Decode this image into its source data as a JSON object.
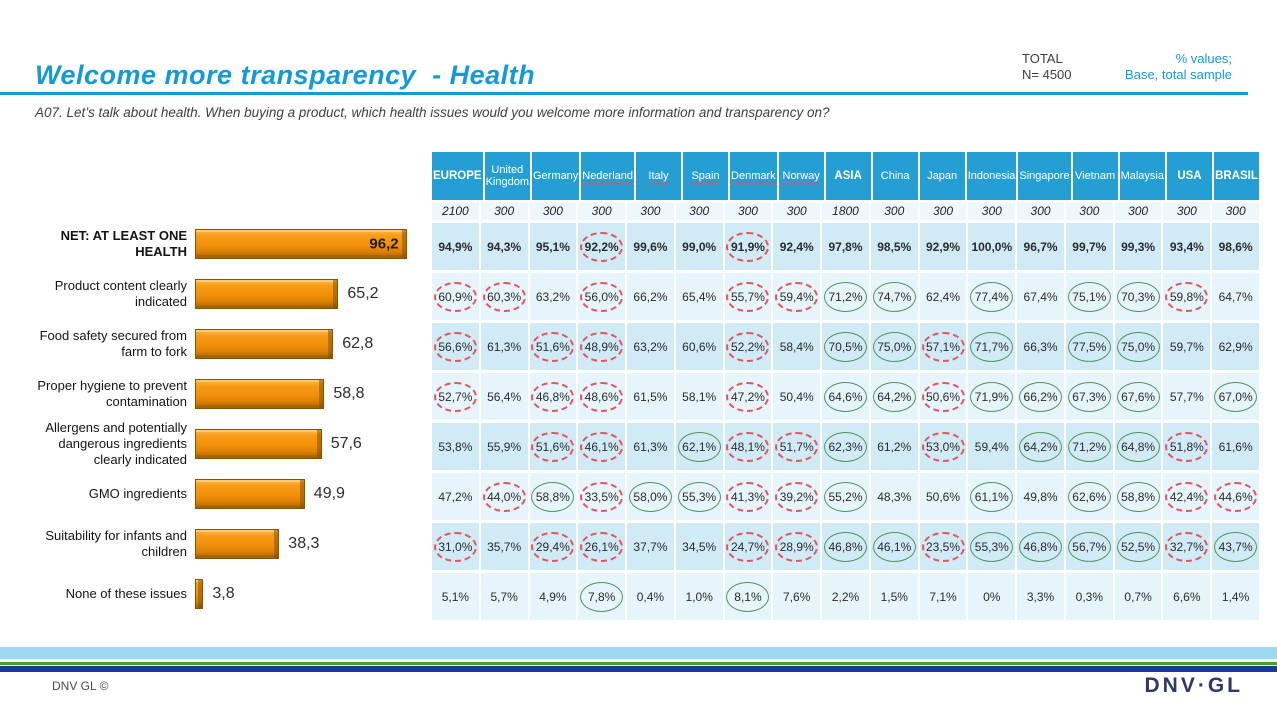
{
  "header": {
    "title": "Welcome more transparency  - Health",
    "question": "A07. Let’s talk about health. When buying a product, which health issues would you welcome more information and transparency on?",
    "total_label": "TOTAL",
    "total_n": "N= 4500",
    "note1": "% values;",
    "note2": "Base, total sample"
  },
  "colors": {
    "accent_cyan": "#149AD6",
    "bar_orange": "#F1900A",
    "table_header_blue": "#259FD3",
    "row_dark": "#D0EAF6",
    "row_light": "#E6F4FB",
    "circle_red": "#E4555C",
    "circle_green": "#55965B",
    "stripe_sky": "#9ED8F0",
    "stripe_green": "#3FA332",
    "stripe_navy": "#163A9C"
  },
  "chart_data": {
    "type": "bar",
    "orientation": "horizontal",
    "title": "Welcome more transparency - Health",
    "categories": [
      "NET: AT LEAST ONE HEALTH",
      "Product content clearly indicated",
      "Food safety secured from farm to fork",
      "Proper hygiene to prevent contamination",
      "Allergens and potentially dangerous ingredients clearly indicated",
      "GMO ingredients",
      "Suitability for infants and children",
      "None of these issues"
    ],
    "values": [
      96.2,
      65.2,
      62.8,
      58.8,
      57.6,
      49.9,
      38.3,
      3.8
    ],
    "value_labels": [
      "96,2",
      "65,2",
      "62,8",
      "58,8",
      "57,6",
      "49,9",
      "38,3",
      "3,8"
    ],
    "xlim": [
      0,
      100
    ],
    "bar_color": "#F1900A"
  },
  "table": {
    "columns": [
      {
        "label": "EUROPE",
        "n": "2100",
        "group": true,
        "misspell": false
      },
      {
        "label": "United Kingdom",
        "n": "300",
        "group": false,
        "misspell": false
      },
      {
        "label": "Germany",
        "n": "300",
        "group": false,
        "misspell": false
      },
      {
        "label": "Nederland",
        "n": "300",
        "group": false,
        "misspell": true
      },
      {
        "label": "Italy",
        "n": "300",
        "group": false,
        "misspell": true
      },
      {
        "label": "Spain",
        "n": "300",
        "group": false,
        "misspell": true
      },
      {
        "label": "Denmark",
        "n": "300",
        "group": false,
        "misspell": true
      },
      {
        "label": "Norway",
        "n": "300",
        "group": false,
        "misspell": true
      },
      {
        "label": "ASIA",
        "n": "1800",
        "group": true,
        "misspell": false
      },
      {
        "label": "China",
        "n": "300",
        "group": false,
        "misspell": false
      },
      {
        "label": "Japan",
        "n": "300",
        "group": false,
        "misspell": false
      },
      {
        "label": "Indonesia",
        "n": "300",
        "group": false,
        "misspell": false
      },
      {
        "label": "Singapore",
        "n": "300",
        "group": false,
        "misspell": false
      },
      {
        "label": "Vietnam",
        "n": "300",
        "group": false,
        "misspell": false
      },
      {
        "label": "Malaysia",
        "n": "300",
        "group": false,
        "misspell": false
      },
      {
        "label": "USA",
        "n": "300",
        "group": true,
        "misspell": false
      },
      {
        "label": "BRASIL",
        "n": "300",
        "group": true,
        "misspell": false
      }
    ],
    "rows": [
      {
        "label": "NET: AT LEAST ONE HEALTH",
        "bold": true,
        "value_inside": true,
        "pct": 96.2,
        "value_label": "96,2",
        "values": [
          "94,9%",
          "94,3%",
          "95,1%",
          "92,2%",
          "99,6%",
          "99,0%",
          "91,9%",
          "92,4%",
          "97,8%",
          "98,5%",
          "92,9%",
          "100,0%",
          "96,7%",
          "99,7%",
          "99,3%",
          "93,4%",
          "98,6%"
        ],
        "marks": [
          "",
          "",
          "",
          "r",
          "",
          "",
          "r",
          "",
          "",
          "",
          "",
          "",
          "",
          "",
          "",
          "",
          ""
        ]
      },
      {
        "label": "Product content clearly indicated",
        "bold": false,
        "value_inside": false,
        "pct": 65.2,
        "value_label": "65,2",
        "values": [
          "60,9%",
          "60,3%",
          "63,2%",
          "56,0%",
          "66,2%",
          "65,4%",
          "55,7%",
          "59,4%",
          "71,2%",
          "74,7%",
          "62,4%",
          "77,4%",
          "67,4%",
          "75,1%",
          "70,3%",
          "59,8%",
          "64,7%"
        ],
        "marks": [
          "r",
          "r",
          "",
          "r",
          "",
          "",
          "r",
          "r",
          "g",
          "g",
          "",
          "g",
          "",
          "g",
          "g",
          "r",
          ""
        ]
      },
      {
        "label": "Food safety secured from farm to fork",
        "bold": false,
        "value_inside": false,
        "pct": 62.8,
        "value_label": "62,8",
        "values": [
          "56,6%",
          "61,3%",
          "51,6%",
          "48,9%",
          "63,2%",
          "60,6%",
          "52,2%",
          "58,4%",
          "70,5%",
          "75,0%",
          "57,1%",
          "71,7%",
          "66,3%",
          "77,5%",
          "75,0%",
          "59,7%",
          "62,9%"
        ],
        "marks": [
          "r",
          "",
          "r",
          "r",
          "",
          "",
          "r",
          "",
          "g",
          "g",
          "r",
          "g",
          "",
          "g",
          "g",
          "",
          ""
        ]
      },
      {
        "label": "Proper hygiene to prevent contamination",
        "bold": false,
        "value_inside": false,
        "pct": 58.8,
        "value_label": "58,8",
        "values": [
          "52,7%",
          "56,4%",
          "46,8%",
          "48,6%",
          "61,5%",
          "58,1%",
          "47,2%",
          "50,4%",
          "64,6%",
          "64,2%",
          "50,6%",
          "71,9%",
          "66,2%",
          "67,3%",
          "67,6%",
          "57,7%",
          "67,0%"
        ],
        "marks": [
          "r",
          "",
          "r",
          "r",
          "",
          "",
          "r",
          "",
          "g",
          "g",
          "r",
          "g",
          "g",
          "g",
          "g",
          "",
          "g"
        ]
      },
      {
        "label": "Allergens and potentially dangerous ingredients clearly indicated",
        "bold": false,
        "value_inside": false,
        "pct": 57.6,
        "value_label": "57,6",
        "values": [
          "53,8%",
          "55,9%",
          "51,6%",
          "46,1%",
          "61,3%",
          "62,1%",
          "48,1%",
          "51,7%",
          "62,3%",
          "61,2%",
          "53,0%",
          "59,4%",
          "64,2%",
          "71,2%",
          "64,8%",
          "51,8%",
          "61,6%"
        ],
        "marks": [
          "",
          "",
          "r",
          "r",
          "",
          "g",
          "r",
          "r",
          "g",
          "",
          "r",
          "",
          "g",
          "g",
          "g",
          "r",
          ""
        ]
      },
      {
        "label": "GMO ingredients",
        "bold": false,
        "value_inside": false,
        "pct": 49.9,
        "value_label": "49,9",
        "values": [
          "47,2%",
          "44,0%",
          "58,8%",
          "33,5%",
          "58,0%",
          "55,3%",
          "41,3%",
          "39,2%",
          "55,2%",
          "48,3%",
          "50,6%",
          "61,1%",
          "49,8%",
          "62,6%",
          "58,8%",
          "42,4%",
          "44,6%"
        ],
        "marks": [
          "",
          "r",
          "g",
          "r",
          "g",
          "g",
          "r",
          "r",
          "g",
          "",
          "",
          "g",
          "",
          "g",
          "g",
          "r",
          "r"
        ]
      },
      {
        "label": "Suitability for infants and children",
        "bold": false,
        "value_inside": false,
        "pct": 38.3,
        "value_label": "38,3",
        "values": [
          "31,0%",
          "35,7%",
          "29,4%",
          "26,1%",
          "37,7%",
          "34,5%",
          "24,7%",
          "28,9%",
          "46,8%",
          "46,1%",
          "23,5%",
          "55,3%",
          "46,8%",
          "56,7%",
          "52,5%",
          "32,7%",
          "43,7%"
        ],
        "marks": [
          "r",
          "",
          "r",
          "r",
          "",
          "",
          "r",
          "r",
          "g",
          "g",
          "r",
          "g",
          "g",
          "g",
          "g",
          "r",
          "g"
        ]
      },
      {
        "label": "None of these issues",
        "bold": false,
        "value_inside": false,
        "pct": 3.8,
        "value_label": "3,8",
        "values": [
          "5,1%",
          "5,7%",
          "4,9%",
          "7,8%",
          "0,4%",
          "1,0%",
          "8,1%",
          "7,6%",
          "2,2%",
          "1,5%",
          "7,1%",
          "0%",
          "3,3%",
          "0,3%",
          "0,7%",
          "6,6%",
          "1,4%"
        ],
        "marks": [
          "",
          "",
          "",
          "g",
          "",
          "",
          "g",
          "",
          "",
          "",
          "",
          "",
          "",
          "",
          "",
          "",
          ""
        ]
      }
    ]
  },
  "footer": {
    "copyright": "DNV GL ©",
    "logo": "DNV·GL"
  }
}
